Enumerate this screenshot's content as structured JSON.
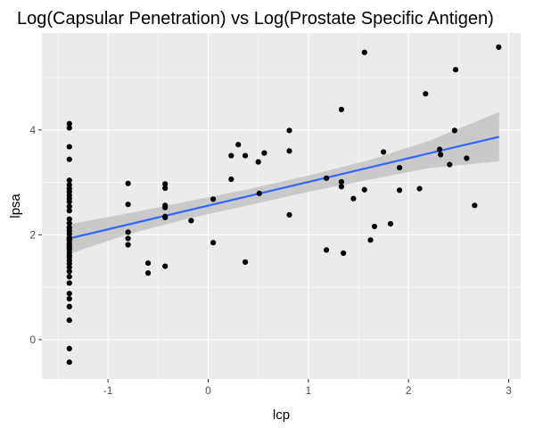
{
  "chart_data": {
    "type": "scatter",
    "title": "Log(Capsular Penetration) vs Log(Prostate Specific Antigen)",
    "xlabel": "lcp",
    "ylabel": "lpsa",
    "xlim": [
      -1.66,
      3.12
    ],
    "ylim": [
      -0.75,
      5.85
    ],
    "x_ticks": [
      "-1",
      "0",
      "1",
      "2",
      "3"
    ],
    "y_ticks": [
      "0",
      "2",
      "4"
    ],
    "grid": true,
    "legend": "none",
    "colors": {
      "panel_background": "#ebebeb",
      "grid": "#ffffff",
      "points": "#000000",
      "trend_line": "#3366ff",
      "confidence_band": "#bebebe"
    },
    "trend_line": {
      "x": [
        -1.386,
        2.904
      ],
      "y": [
        1.93,
        3.87
      ]
    },
    "confidence_band": {
      "x": [
        -1.386,
        -0.8,
        -0.2,
        0.4,
        1.0,
        1.6,
        2.2,
        2.904
      ],
      "lower": [
        1.64,
        2.01,
        2.31,
        2.56,
        2.82,
        3.05,
        3.27,
        3.4
      ],
      "upper": [
        2.2,
        2.41,
        2.64,
        2.87,
        3.13,
        3.42,
        3.79,
        4.34
      ]
    },
    "points": {
      "x": [
        -1.386,
        -1.386,
        -1.386,
        -1.386,
        -1.386,
        -1.386,
        -1.386,
        -1.386,
        -1.386,
        -1.386,
        -1.386,
        -1.386,
        -1.386,
        -1.386,
        -1.386,
        -1.386,
        -1.386,
        -1.386,
        -1.386,
        -1.386,
        -1.386,
        -1.386,
        -1.386,
        -1.386,
        -1.386,
        -1.386,
        -1.386,
        -1.386,
        -1.386,
        -1.386,
        -1.386,
        -1.386,
        -1.386,
        -1.386,
        -1.386,
        -1.386,
        -1.386,
        -1.386,
        -1.386,
        -1.386,
        -0.8,
        -0.8,
        -0.8,
        -0.8,
        -0.8,
        -0.6,
        -0.6,
        -0.43,
        -0.43,
        -0.43,
        -0.43,
        -0.43,
        -0.43,
        -0.43,
        -0.17,
        0.05,
        0.05,
        0.23,
        0.23,
        0.3,
        0.37,
        0.37,
        0.5,
        0.51,
        0.56,
        0.81,
        0.81,
        0.81,
        1.18,
        1.18,
        1.33,
        1.33,
        1.33,
        1.35,
        1.45,
        1.56,
        1.56,
        1.62,
        1.66,
        1.75,
        1.82,
        1.91,
        1.91,
        2.11,
        2.17,
        2.31,
        2.32,
        2.41,
        2.46,
        2.47,
        2.58,
        2.66,
        2.9
      ],
      "y": [
        4.12,
        4.04,
        3.68,
        3.44,
        3.04,
        2.95,
        2.88,
        2.82,
        2.75,
        2.69,
        2.63,
        2.54,
        2.46,
        2.3,
        2.22,
        2.14,
        2.08,
        2.02,
        1.95,
        1.9,
        1.84,
        1.79,
        1.75,
        1.72,
        1.66,
        1.61,
        1.57,
        1.51,
        1.45,
        1.38,
        1.3,
        1.2,
        1.08,
        0.88,
        0.78,
        0.63,
        0.37,
        -0.17,
        -0.43,
        1.92,
        2.98,
        2.58,
        2.05,
        1.93,
        1.81,
        1.46,
        1.27,
        2.97,
        2.89,
        2.56,
        2.52,
        2.35,
        2.33,
        1.4,
        2.27,
        2.68,
        1.85,
        3.51,
        3.06,
        3.72,
        3.51,
        1.48,
        3.39,
        2.79,
        3.56,
        3.99,
        3.6,
        2.38,
        3.08,
        1.71,
        4.39,
        3.01,
        2.92,
        1.65,
        2.69,
        5.48,
        2.86,
        1.9,
        2.16,
        3.58,
        2.21,
        3.28,
        2.85,
        2.88,
        4.69,
        3.63,
        3.53,
        3.34,
        3.99,
        5.15,
        3.46,
        2.56,
        5.58
      ]
    }
  }
}
